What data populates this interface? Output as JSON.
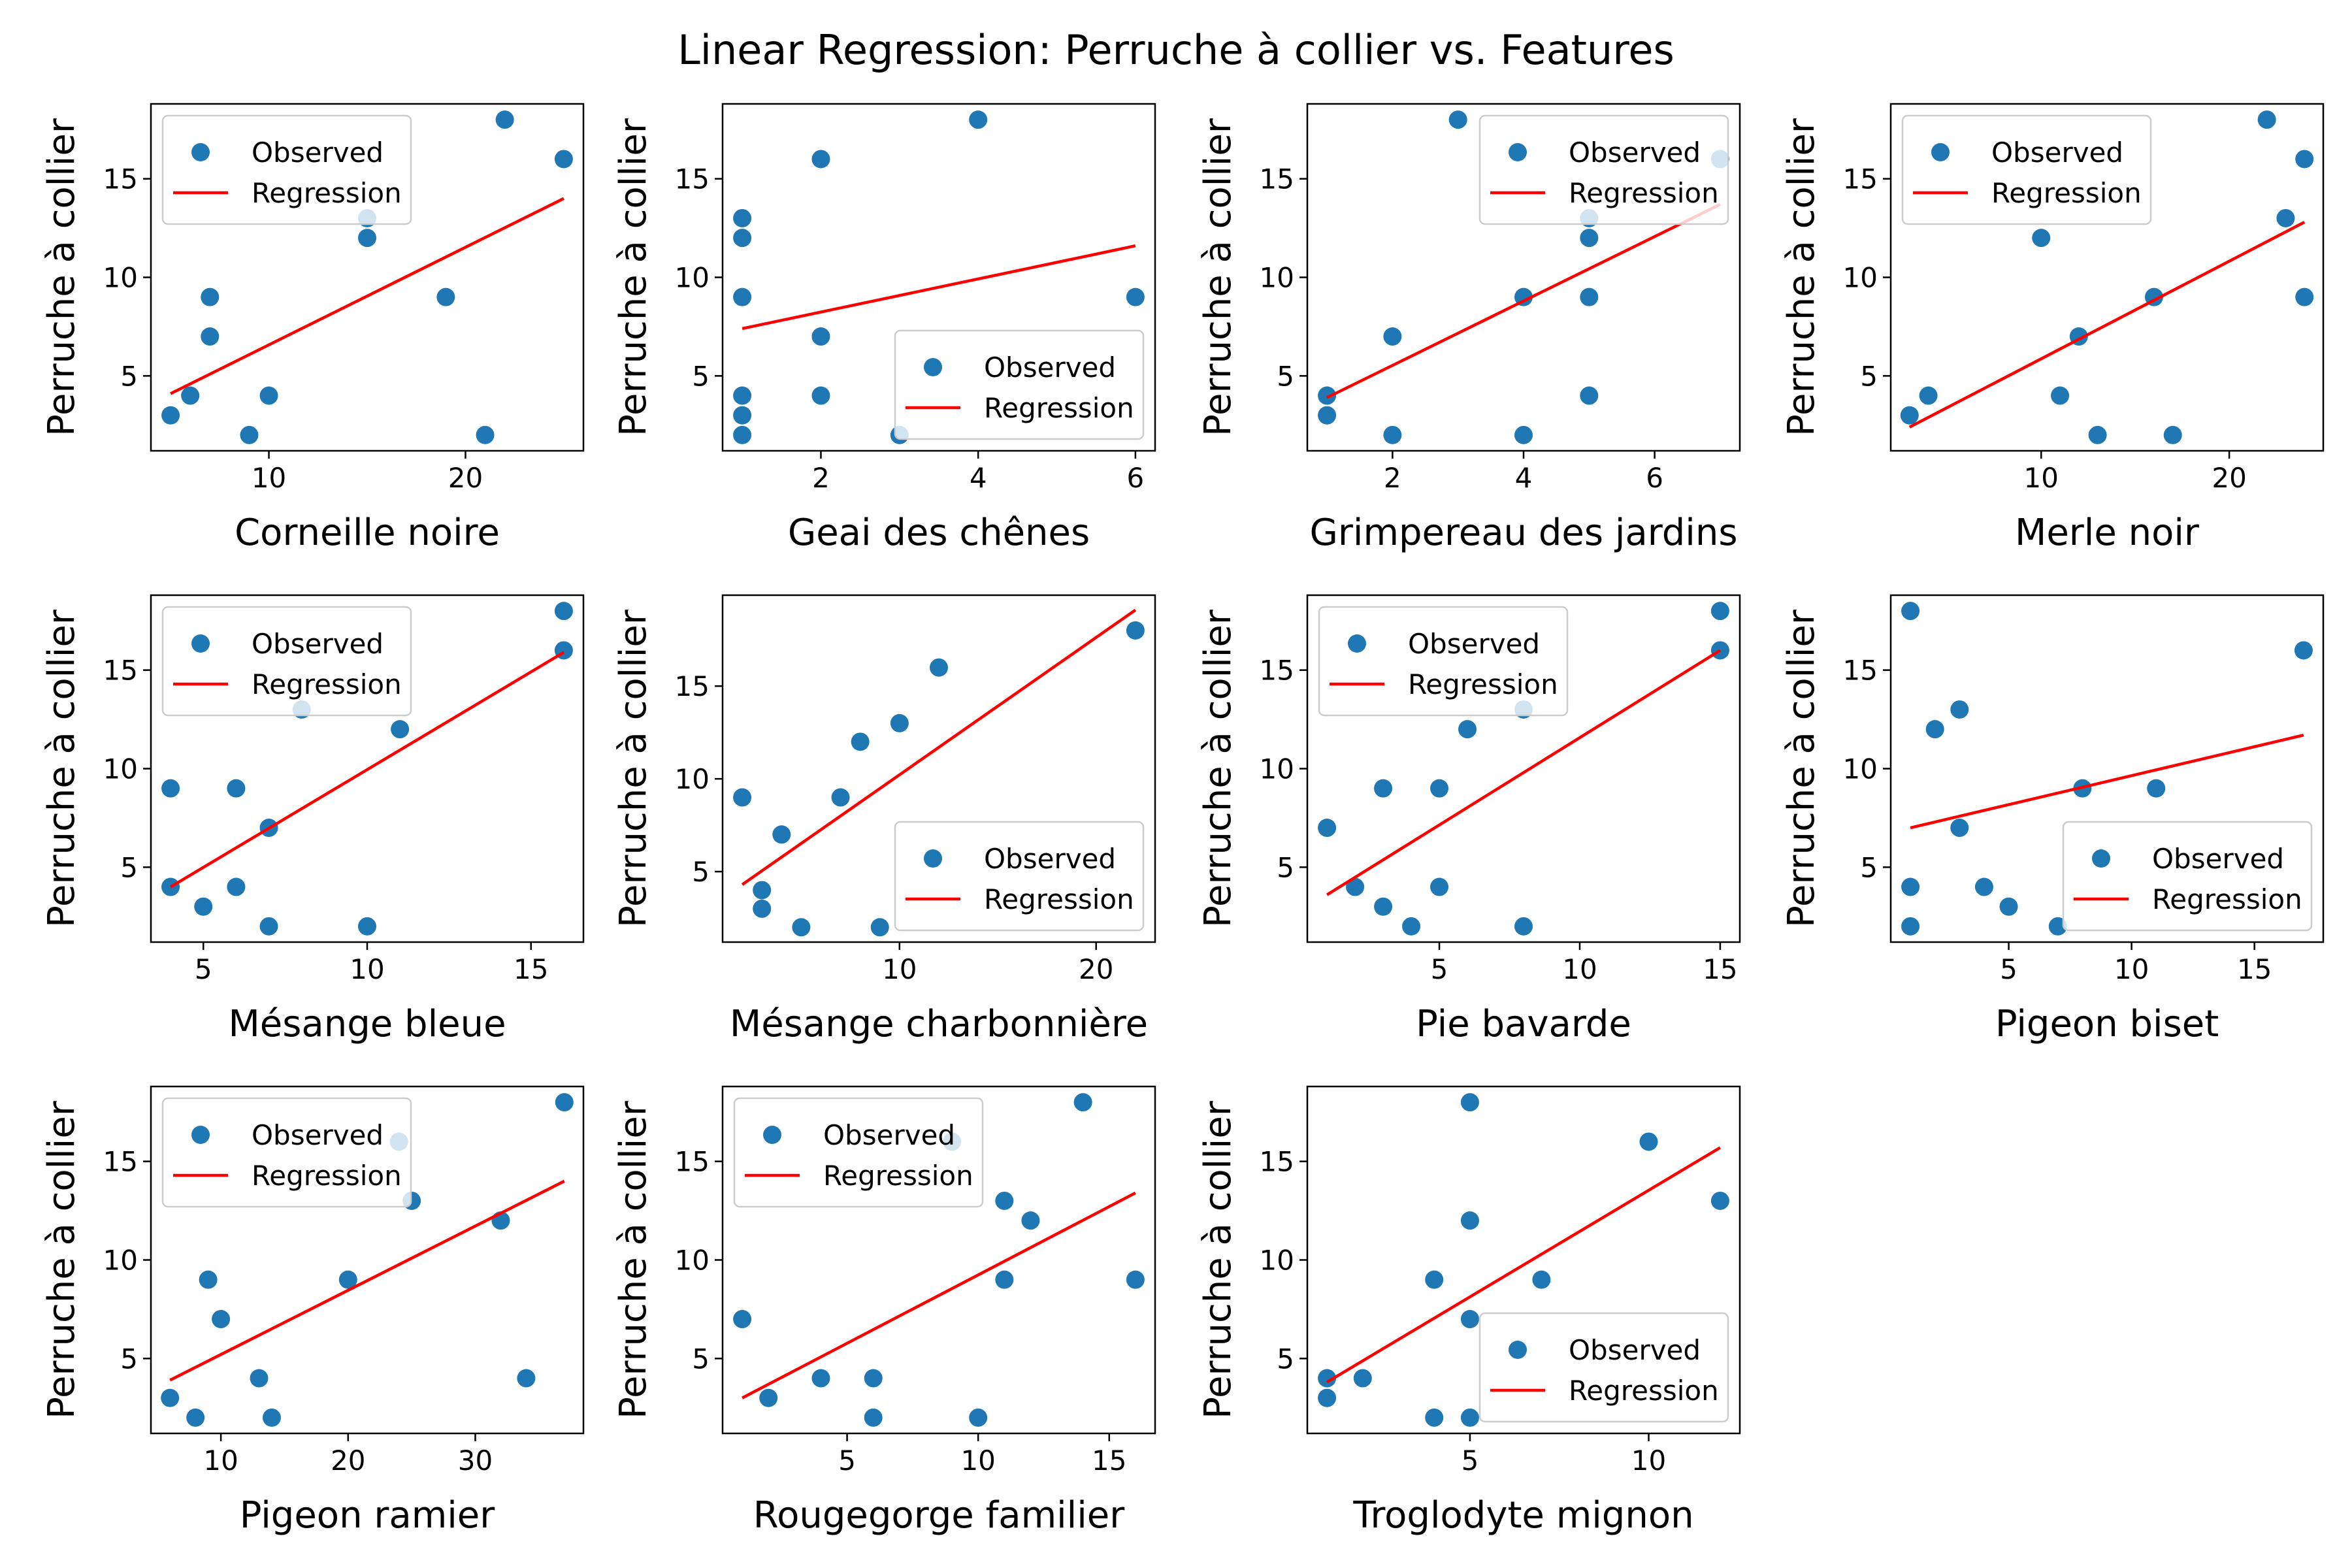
{
  "figure": {
    "title": "Linear Regression: Perruche à collier vs. Features"
  },
  "colors": {
    "observed": "#1f77b4",
    "regression": "#ff0000",
    "axes": "#000000",
    "legend_edge": "#cccccc"
  },
  "legend_entries": [
    "Observed",
    "Regression"
  ],
  "chart_data": [
    {
      "type": "scatter",
      "xlabel": "Corneille noire",
      "ylabel": "Perruche à collier",
      "xlim": [
        4.0,
        26.0
      ],
      "ylim": [
        1.2,
        18.8
      ],
      "xticks": [
        10,
        20
      ],
      "yticks": [
        5,
        10,
        15
      ],
      "legend": "upper-left",
      "points": [
        [
          5,
          3
        ],
        [
          6,
          4
        ],
        [
          7,
          9
        ],
        [
          7,
          7
        ],
        [
          9,
          2
        ],
        [
          10,
          4
        ],
        [
          15,
          13
        ],
        [
          15,
          12
        ],
        [
          19,
          9
        ],
        [
          21,
          2
        ],
        [
          22,
          18
        ],
        [
          25,
          16
        ]
      ],
      "line": [
        [
          5,
          4.1
        ],
        [
          25,
          14.0
        ]
      ]
    },
    {
      "type": "scatter",
      "xlabel": "Geai des chênes",
      "ylabel": "Perruche à collier",
      "xlim": [
        0.75,
        6.25
      ],
      "ylim": [
        1.2,
        18.8
      ],
      "xticks": [
        2,
        4,
        6
      ],
      "yticks": [
        5,
        10,
        15
      ],
      "legend": "lower-right",
      "points": [
        [
          1,
          13
        ],
        [
          1,
          12
        ],
        [
          1,
          9
        ],
        [
          1,
          4
        ],
        [
          1,
          3
        ],
        [
          1,
          2
        ],
        [
          2,
          16
        ],
        [
          2,
          7
        ],
        [
          2,
          4
        ],
        [
          3,
          2
        ],
        [
          4,
          18
        ],
        [
          6,
          9
        ]
      ],
      "line": [
        [
          1,
          7.4
        ],
        [
          6,
          11.6
        ]
      ]
    },
    {
      "type": "scatter",
      "xlabel": "Grimpereau des jardins",
      "ylabel": "Perruche à collier",
      "xlim": [
        0.7,
        7.3
      ],
      "ylim": [
        1.2,
        18.8
      ],
      "xticks": [
        2,
        4,
        6
      ],
      "yticks": [
        5,
        10,
        15
      ],
      "legend": "upper-right",
      "points": [
        [
          1,
          4
        ],
        [
          1,
          3
        ],
        [
          2,
          7
        ],
        [
          2,
          2
        ],
        [
          3,
          18
        ],
        [
          4,
          9
        ],
        [
          4,
          2
        ],
        [
          5,
          13
        ],
        [
          5,
          12
        ],
        [
          5,
          9
        ],
        [
          5,
          4
        ],
        [
          7,
          16
        ]
      ],
      "line": [
        [
          1,
          3.9
        ],
        [
          7,
          13.7
        ]
      ]
    },
    {
      "type": "scatter",
      "xlabel": "Merle noir",
      "ylabel": "Perruche à collier",
      "xlim": [
        2.0,
        25.0
      ],
      "ylim": [
        1.2,
        18.8
      ],
      "xticks": [
        10,
        20
      ],
      "yticks": [
        5,
        10,
        15
      ],
      "legend": "upper-left",
      "points": [
        [
          3,
          3
        ],
        [
          4,
          4
        ],
        [
          10,
          12
        ],
        [
          11,
          4
        ],
        [
          12,
          7
        ],
        [
          13,
          2
        ],
        [
          16,
          9
        ],
        [
          17,
          2
        ],
        [
          22,
          18
        ],
        [
          23,
          13
        ],
        [
          24,
          16
        ],
        [
          24,
          9
        ]
      ],
      "line": [
        [
          3,
          2.4
        ],
        [
          24,
          12.8
        ]
      ]
    },
    {
      "type": "scatter",
      "xlabel": "Mésange bleue",
      "ylabel": "Perruche à collier",
      "xlim": [
        3.4,
        16.6
      ],
      "ylim": [
        1.2,
        18.8
      ],
      "xticks": [
        5,
        10,
        15
      ],
      "yticks": [
        5,
        10,
        15
      ],
      "legend": "upper-left",
      "points": [
        [
          4,
          9
        ],
        [
          4,
          4
        ],
        [
          5,
          3
        ],
        [
          6,
          9
        ],
        [
          6,
          4
        ],
        [
          7,
          7
        ],
        [
          7,
          2
        ],
        [
          8,
          13
        ],
        [
          10,
          2
        ],
        [
          11,
          12
        ],
        [
          16,
          18
        ],
        [
          16,
          16
        ]
      ],
      "line": [
        [
          4,
          4.0
        ],
        [
          16,
          15.9
        ]
      ]
    },
    {
      "type": "scatter",
      "xlabel": "Mésange charbonnière",
      "ylabel": "Perruche à collier",
      "xlim": [
        1.0,
        23.0
      ],
      "ylim": [
        1.2,
        19.9
      ],
      "xticks": [
        10,
        20
      ],
      "yticks": [
        5,
        10,
        15
      ],
      "legend": "lower-right",
      "points": [
        [
          2,
          9
        ],
        [
          3,
          4
        ],
        [
          3,
          3
        ],
        [
          4,
          7
        ],
        [
          5,
          2
        ],
        [
          7,
          9
        ],
        [
          8,
          12
        ],
        [
          9,
          2
        ],
        [
          10,
          13
        ],
        [
          12,
          16
        ],
        [
          22,
          18
        ]
      ],
      "line": [
        [
          2,
          4.3
        ],
        [
          22,
          19.1
        ]
      ]
    },
    {
      "type": "scatter",
      "xlabel": "Pie bavarde",
      "ylabel": "Perruche à collier",
      "xlim": [
        0.3,
        15.7
      ],
      "ylim": [
        1.2,
        18.8
      ],
      "xticks": [
        5,
        10,
        15
      ],
      "yticks": [
        5,
        10,
        15
      ],
      "legend": "upper-left",
      "points": [
        [
          1,
          7
        ],
        [
          2,
          4
        ],
        [
          3,
          9
        ],
        [
          3,
          3
        ],
        [
          4,
          2
        ],
        [
          5,
          9
        ],
        [
          5,
          4
        ],
        [
          6,
          12
        ],
        [
          8,
          13
        ],
        [
          8,
          2
        ],
        [
          15,
          18
        ],
        [
          15,
          16
        ]
      ],
      "line": [
        [
          1,
          3.6
        ],
        [
          15,
          16.0
        ]
      ]
    },
    {
      "type": "scatter",
      "xlabel": "Pigeon biset",
      "ylabel": "Perruche à collier",
      "xlim": [
        0.2,
        17.8
      ],
      "ylim": [
        1.2,
        18.8
      ],
      "xticks": [
        5,
        10,
        15
      ],
      "yticks": [
        5,
        10,
        15
      ],
      "legend": "lower-right",
      "points": [
        [
          1,
          18
        ],
        [
          1,
          4
        ],
        [
          1,
          2
        ],
        [
          2,
          12
        ],
        [
          3,
          13
        ],
        [
          3,
          7
        ],
        [
          4,
          4
        ],
        [
          5,
          3
        ],
        [
          7,
          2
        ],
        [
          8,
          9
        ],
        [
          11,
          9
        ],
        [
          17,
          16
        ]
      ],
      "line": [
        [
          1,
          7.0
        ],
        [
          17,
          11.7
        ]
      ]
    },
    {
      "type": "scatter",
      "xlabel": "Pigeon ramier",
      "ylabel": "Perruche à collier",
      "xlim": [
        4.5,
        38.5
      ],
      "ylim": [
        1.2,
        18.8
      ],
      "xticks": [
        10,
        20,
        30
      ],
      "yticks": [
        5,
        10,
        15
      ],
      "legend": "upper-left",
      "points": [
        [
          6,
          3
        ],
        [
          8,
          2
        ],
        [
          9,
          9
        ],
        [
          10,
          7
        ],
        [
          13,
          4
        ],
        [
          14,
          2
        ],
        [
          20,
          9
        ],
        [
          24,
          16
        ],
        [
          25,
          13
        ],
        [
          32,
          12
        ],
        [
          34,
          4
        ],
        [
          37,
          18
        ]
      ],
      "line": [
        [
          6,
          3.9
        ],
        [
          37,
          14.0
        ]
      ]
    },
    {
      "type": "scatter",
      "xlabel": "Rougegorge familier",
      "ylabel": "Perruche à collier",
      "xlim": [
        0.25,
        16.75
      ],
      "ylim": [
        1.2,
        18.8
      ],
      "xticks": [
        5,
        10,
        15
      ],
      "yticks": [
        5,
        10,
        15
      ],
      "legend": "upper-left",
      "points": [
        [
          1,
          7
        ],
        [
          2,
          3
        ],
        [
          4,
          4
        ],
        [
          6,
          4
        ],
        [
          6,
          2
        ],
        [
          9,
          16
        ],
        [
          10,
          2
        ],
        [
          11,
          13
        ],
        [
          11,
          9
        ],
        [
          12,
          12
        ],
        [
          14,
          18
        ],
        [
          16,
          9
        ]
      ],
      "line": [
        [
          1,
          3.0
        ],
        [
          16,
          13.4
        ]
      ]
    },
    {
      "type": "scatter",
      "xlabel": "Troglodyte mignon",
      "ylabel": "Perruche à collier",
      "xlim": [
        0.45,
        12.55
      ],
      "ylim": [
        1.2,
        18.8
      ],
      "xticks": [
        5,
        10
      ],
      "yticks": [
        5,
        10,
        15
      ],
      "legend": "lower-right",
      "points": [
        [
          1,
          4
        ],
        [
          1,
          3
        ],
        [
          2,
          4
        ],
        [
          4,
          9
        ],
        [
          4,
          2
        ],
        [
          5,
          18
        ],
        [
          5,
          12
        ],
        [
          5,
          7
        ],
        [
          5,
          2
        ],
        [
          7,
          9
        ],
        [
          10,
          16
        ],
        [
          12,
          13
        ]
      ],
      "line": [
        [
          1,
          3.8
        ],
        [
          12,
          15.7
        ]
      ]
    }
  ]
}
